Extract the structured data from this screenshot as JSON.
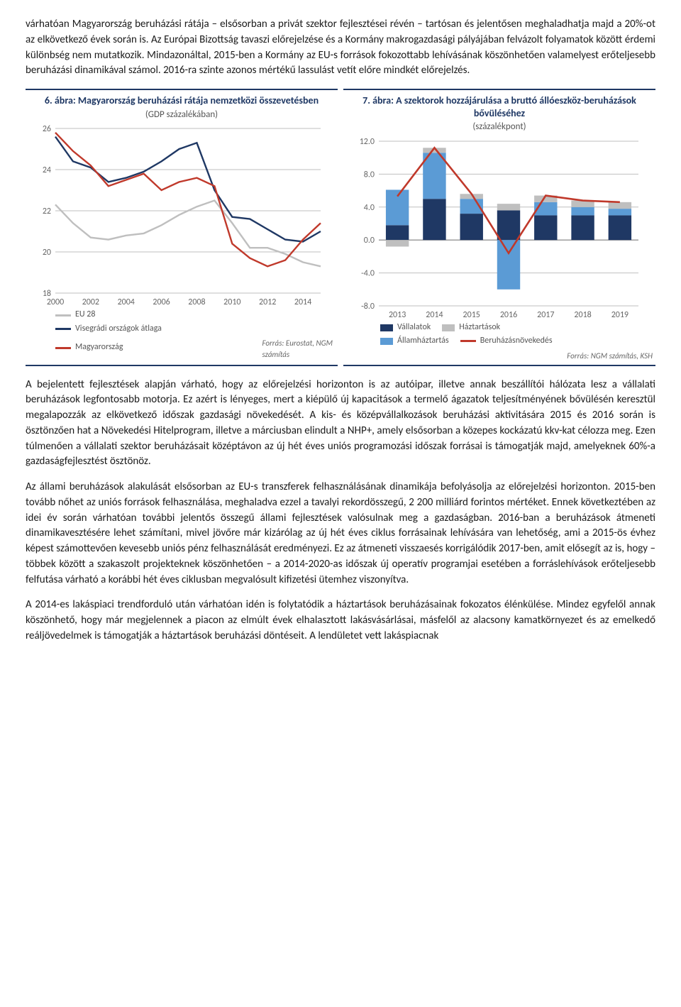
{
  "para1": "várhatóan Magyarország beruházási rátája – elsősorban a privát szektor fejlesztései révén – tartósan és jelentősen meghaladhatja majd a 20%-ot az elkövetkező évek során is. Az Európai Bizottság tavaszi előrejelzése és a Kormány makrogazdasági pályájában felvázolt folyamatok között érdemi különbség nem mutatkozik. Mindazonáltal, 2015-ben a Kormány az EU-s források fokozottabb lehívásának köszönhetően valamelyest erőteljesebb beruházási dinamikával számol. 2016-ra szinte azonos mértékű lassulást vetít előre mindkét előrejelzés.",
  "para2": "A bejelentett fejlesztések alapján várható, hogy az előrejelzési horizonton is az autóipar, illetve annak beszállítói hálózata lesz a vállalati beruházások legfontosabb motorja. Ez azért is lényeges, mert a kiépülő új kapacitások a termelő ágazatok teljesítményének bővülésén keresztül megalapozzák az elkövetkező időszak gazdasági növekedését. A kis- és középvállalkozások beruházási aktivitására 2015 és 2016 során is ösztönzően hat a Növekedési Hitelprogram, illetve a márciusban elindult a NHP+, amely elsősorban a közepes kockázatú kkv-kat célozza meg. Ezen túlmenően a vállalati szektor beruházásait középtávon az új hét éves uniós programozási időszak forrásai is támogatják majd, amelyeknek 60%-a gazdaságfejlesztést ösztönöz.",
  "para3": "Az állami beruházások alakulását elsősorban az EU-s transzferek felhasználásának dinamikája befolyásolja az előrejelzési horizonton. 2015-ben tovább nőhet az uniós források felhasználása, meghaladva ezzel a tavalyi rekordösszegű, 2 200 milliárd forintos mértéket. Ennek következtében az idei év során várhatóan további jelentős összegű állami fejlesztések valósulnak meg a gazdaságban. 2016-ban a beruházások átmeneti dinamikavesztésére lehet számítani, mivel jövőre már kizárólag az új hét éves ciklus forrásainak lehívására van lehetőség, ami a 2015-ös évhez képest számottevően kevesebb uniós pénz felhasználását eredményezi. Ez az átmeneti visszaesés korrigálódik 2017-ben, amit elősegít az is, hogy – többek között a szakaszolt projekteknek köszönhetően – a 2014-2020-as időszak új operatív programjai esetében a forráslehívások erőteljesebb felfutása várható a korábbi hét éves ciklusban megvalósult kifizetési ütemhez viszonyítva.",
  "para4": "A 2014-es lakáspiaci trendforduló után várhatóan idén is folytatódik a háztartások beruházásainak fokozatos élénkülése. Mindez egyfelől annak köszönhető, hogy már megjelennek a piacon az elmúlt évek elhalasztott lakásvásárlásai, másfelől az alacsony kamatkörnyezet és az emelkedő reáljövedelmek is támogatják a háztartások beruházási döntéseit. A lendületet vett lakáspiacnak",
  "chart6": {
    "title": "6. ábra: Magyarország beruházási rátája nemzetközi összevetésben",
    "subtitle": "(GDP százalékában)",
    "source": "Forrás: Eurostat, NGM számítás",
    "ylim": [
      18,
      26
    ],
    "ytick_step": 2,
    "x_ticks": [
      2000,
      2002,
      2004,
      2006,
      2008,
      2010,
      2012,
      2014
    ],
    "grid_color": "#bfbfbf",
    "colors": {
      "eu28": "#bfbfbf",
      "v4": "#1f3864",
      "hu": "#c0392b"
    },
    "legend": {
      "eu28": "EU 28",
      "v4": "Visegrádi országok átlaga",
      "hu": "Magyarország"
    },
    "series": {
      "eu28": [
        22.3,
        21.4,
        20.7,
        20.6,
        20.8,
        20.9,
        21.3,
        21.8,
        22.2,
        22.5,
        21.4,
        20.2,
        20.2,
        19.9,
        19.5,
        19.3
      ],
      "v4": [
        25.6,
        24.4,
        24.1,
        23.4,
        23.6,
        23.9,
        24.4,
        25.0,
        25.3,
        23.0,
        21.7,
        21.6,
        21.1,
        20.6,
        20.5,
        21.0
      ],
      "hu": [
        25.8,
        24.9,
        24.2,
        23.2,
        23.5,
        23.8,
        23.0,
        23.4,
        23.6,
        23.2,
        20.4,
        19.7,
        19.3,
        19.6,
        20.6,
        21.4
      ]
    }
  },
  "chart7": {
    "title": "7. ábra: A szektorok hozzájárulása a bruttó állóeszköz-beruházások bővüléséhez",
    "subtitle": "(százalékpont)",
    "source": "Forrás: NGM számítás, KSH",
    "ylim": [
      -8,
      12
    ],
    "ytick_step": 4,
    "years": [
      2013,
      2014,
      2015,
      2016,
      2017,
      2018,
      2019
    ],
    "grid_color": "#bfbfbf",
    "colors": {
      "corp": "#1f3864",
      "gov": "#5b9bd5",
      "hh": "#bfbfbf",
      "total": "#c0392b"
    },
    "legend": {
      "corp": "Vállalatok",
      "gov": "Államháztartás",
      "hh": "Háztartások",
      "total": "Beruházásnövekedés"
    },
    "stacks": {
      "corp": [
        1.8,
        5.0,
        3.2,
        3.6,
        3.0,
        3.0,
        3.0
      ],
      "gov": [
        4.3,
        5.6,
        1.8,
        -6.0,
        1.6,
        1.0,
        0.8
      ],
      "hh": [
        -0.8,
        0.6,
        0.6,
        0.8,
        0.8,
        0.8,
        0.8
      ]
    },
    "total": [
      5.3,
      11.2,
      5.6,
      -1.6,
      5.4,
      4.8,
      4.6
    ]
  }
}
